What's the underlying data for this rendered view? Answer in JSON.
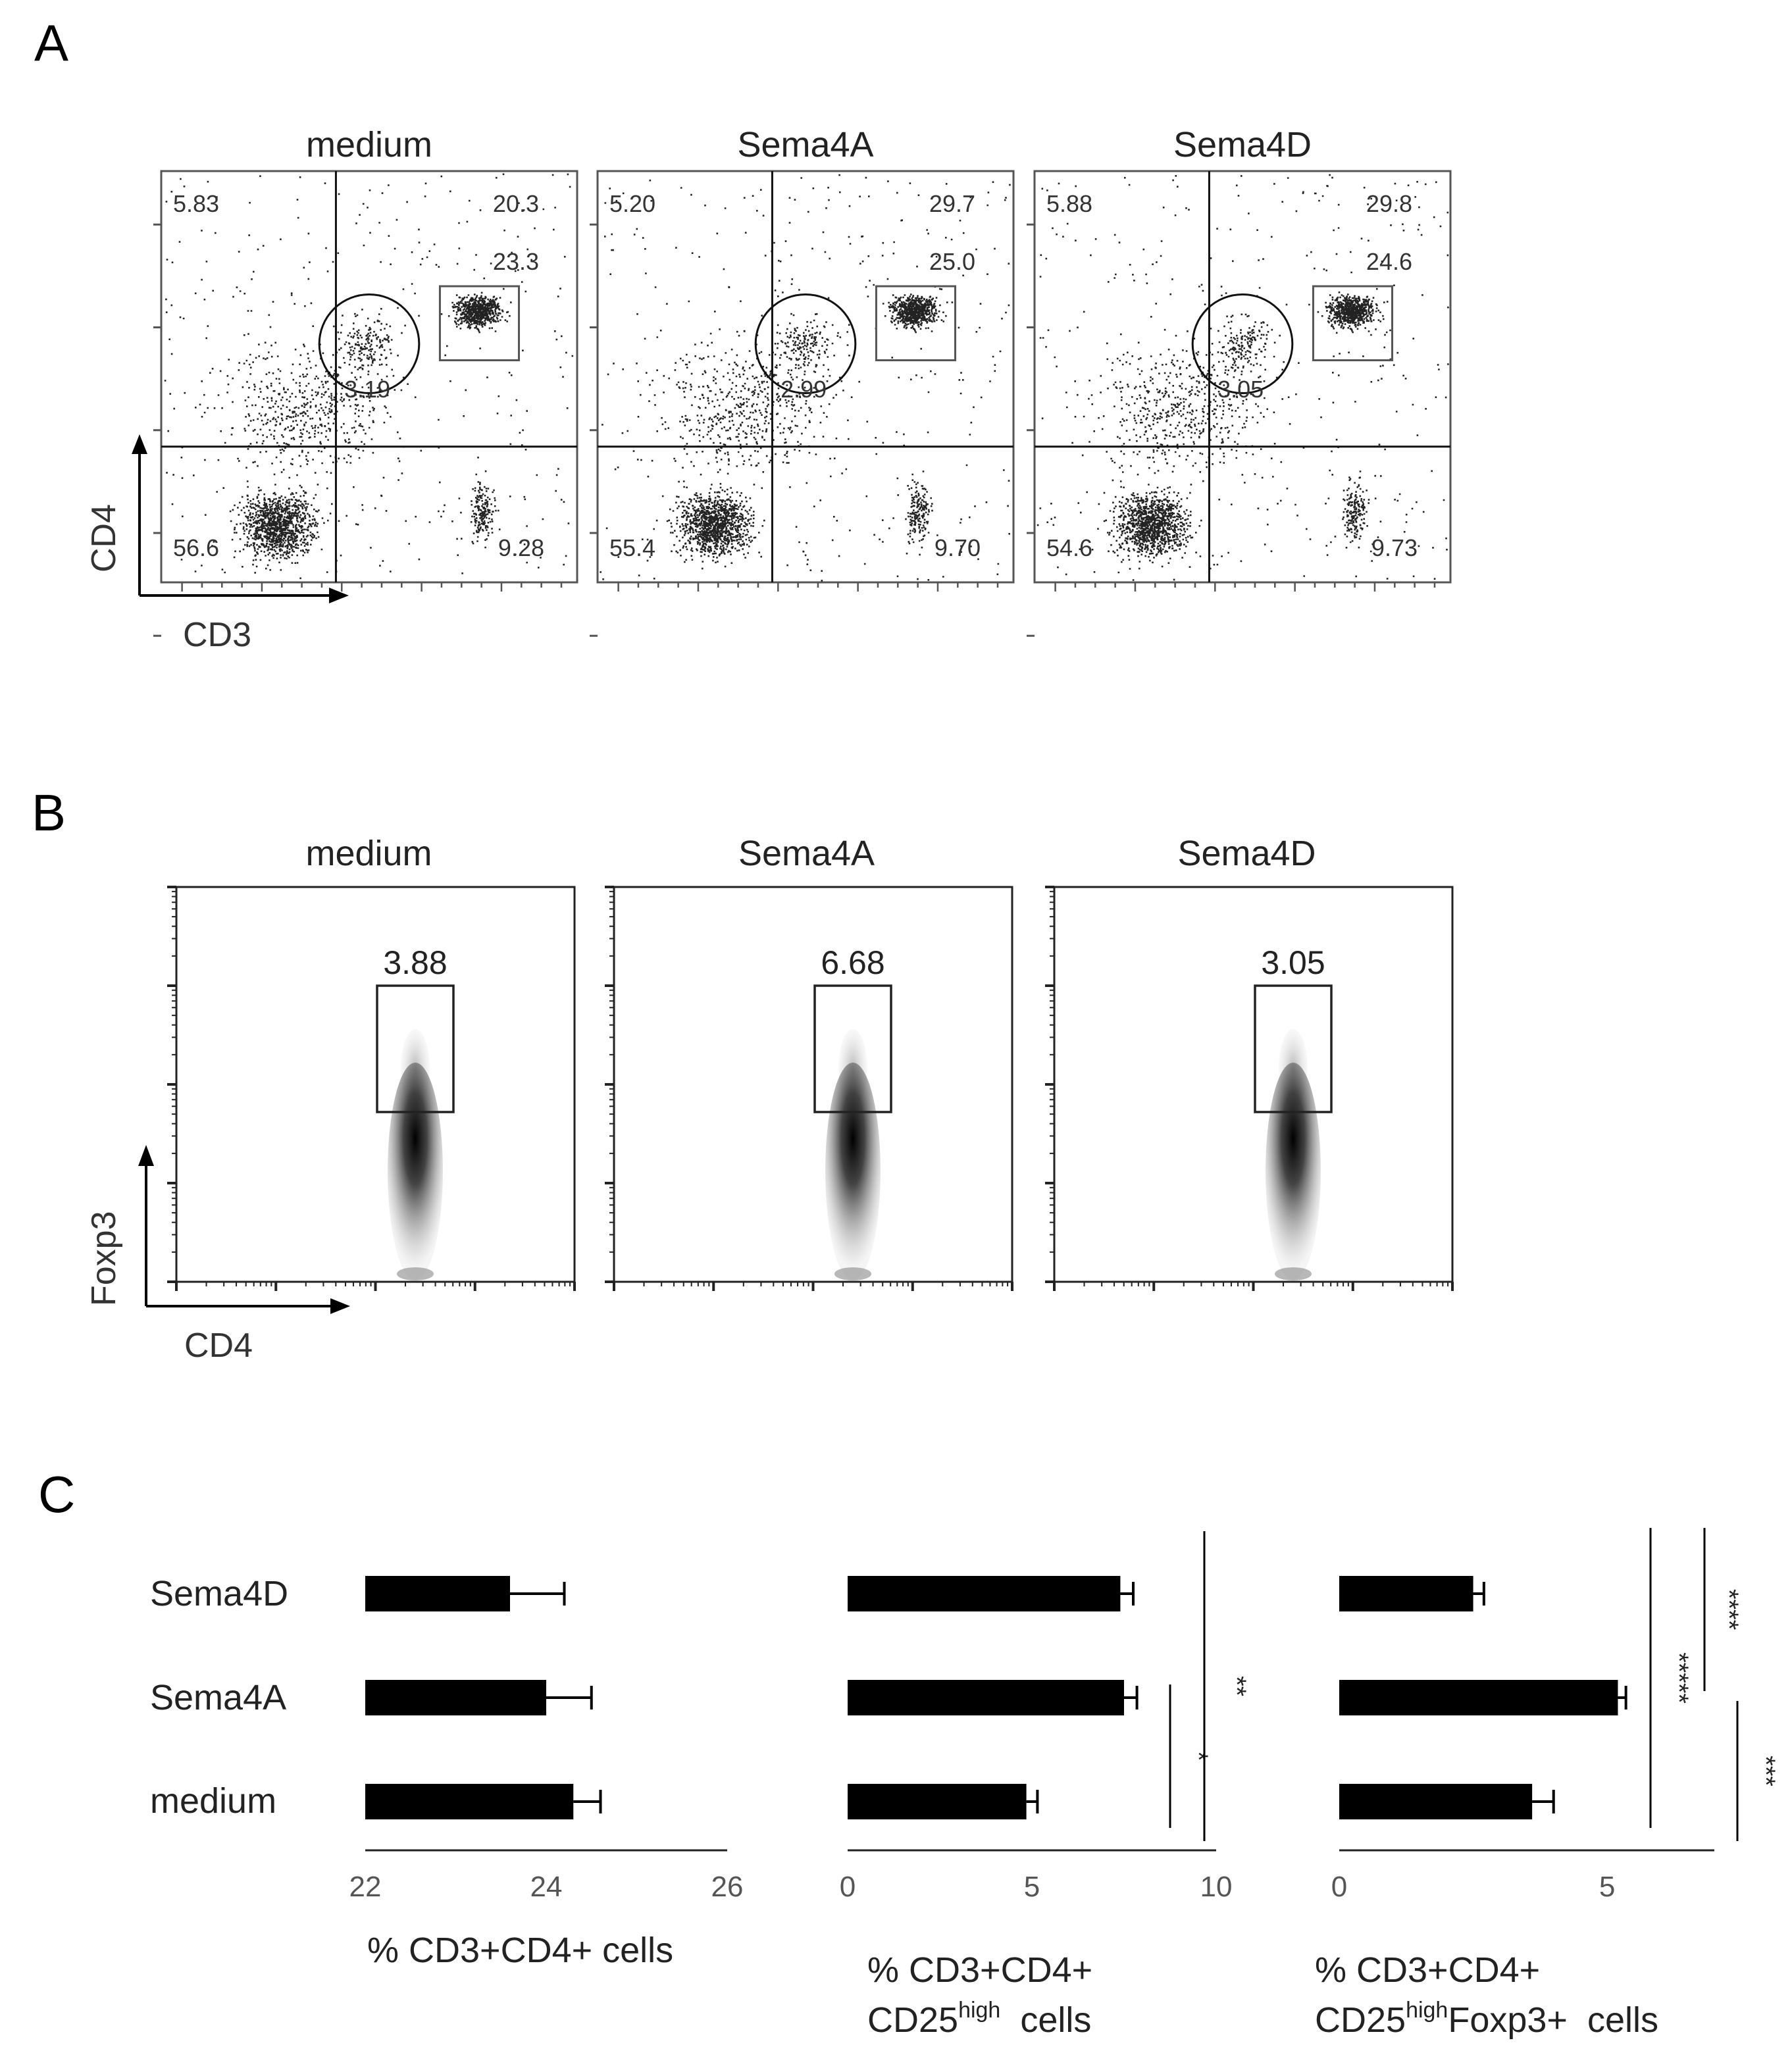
{
  "panels": {
    "A": {
      "letter": "A",
      "xlabel": "CD3",
      "ylabel": "CD4",
      "plots": [
        {
          "title": "medium",
          "q_ul": "5.83",
          "q_ur": "20.3",
          "box": "23.3",
          "circle": "3.19",
          "q_ll": "56.6",
          "q_lr": "9.28"
        },
        {
          "title": "Sema4A",
          "q_ul": "5.20",
          "q_ur": "29.7",
          "box": "25.0",
          "circle": "2.99",
          "q_ll": "55.4",
          "q_lr": "9.70"
        },
        {
          "title": "Sema4D",
          "q_ul": "5.88",
          "q_ur": "29.8",
          "box": "24.6",
          "circle": "3.05",
          "q_ll": "54.6",
          "q_lr": "9.73"
        }
      ]
    },
    "B": {
      "letter": "B",
      "xlabel": "CD4",
      "ylabel": "Foxp3",
      "plots": [
        {
          "title": "medium",
          "gate": "3.88"
        },
        {
          "title": "Sema4A",
          "gate": "6.68"
        },
        {
          "title": "Sema4D",
          "gate": "3.05"
        }
      ]
    },
    "C": {
      "letter": "C",
      "categories": [
        "Sema4D",
        "Sema4A",
        "medium"
      ]
    }
  },
  "chart_data": [
    {
      "type": "bar",
      "orientation": "horizontal",
      "categories": [
        "Sema4D",
        "Sema4A",
        "medium"
      ],
      "values": [
        23.6,
        24.0,
        24.3
      ],
      "errors": [
        0.6,
        0.5,
        0.3
      ],
      "xlabel": "% CD3+CD4+  cells",
      "xlim": [
        22,
        26
      ],
      "xticks": [
        "22",
        "24",
        "26"
      ],
      "significance": []
    },
    {
      "type": "bar",
      "orientation": "horizontal",
      "categories": [
        "Sema4D",
        "Sema4A",
        "medium"
      ],
      "values": [
        7.4,
        7.5,
        4.85
      ],
      "errors": [
        0.35,
        0.35,
        0.3
      ],
      "xlabel_line1": "% CD3+CD4+",
      "xlabel_line2_main": "CD25",
      "xlabel_line2_sup": "high",
      "xlabel_line2_tail": "  cells",
      "xlim": [
        0,
        10
      ],
      "xticks": [
        "0",
        "5",
        "10"
      ],
      "significance": [
        {
          "from": "Sema4A",
          "to": "medium",
          "stars": "*"
        },
        {
          "from": "Sema4D",
          "to": "medium",
          "stars": "**"
        }
      ]
    },
    {
      "type": "bar",
      "orientation": "horizontal",
      "categories": [
        "Sema4D",
        "Sema4A",
        "medium"
      ],
      "values": [
        2.5,
        5.2,
        3.6
      ],
      "errors": [
        0.2,
        0.15,
        0.4
      ],
      "xlabel_line1": "% CD3+CD4+",
      "xlabel_line2_main": "CD25",
      "xlabel_line2_sup": "high",
      "xlabel_line2_tail": "Foxp3+  cells",
      "xlim": [
        0,
        7
      ],
      "xticks": [
        "0",
        "5"
      ],
      "significance": [
        {
          "from": "Sema4D",
          "to": "Sema4A",
          "stars": "****"
        },
        {
          "from": "Sema4D",
          "to": "medium",
          "stars": "*****"
        },
        {
          "from": "Sema4A",
          "to": "medium",
          "stars": "***"
        }
      ]
    }
  ]
}
